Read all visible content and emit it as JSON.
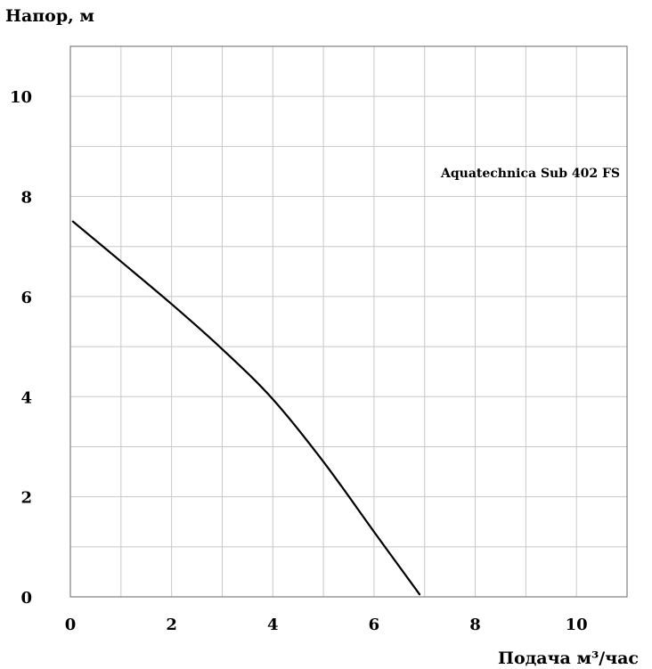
{
  "chart_data": {
    "type": "line",
    "ylabel": "Напор, м",
    "xlabel": "Подача м³/час",
    "annotation": "Aquatechnica Sub 402 FS",
    "xlim": [
      0,
      11
    ],
    "ylim": [
      0,
      11
    ],
    "x_ticks": [
      0,
      2,
      4,
      6,
      8,
      10
    ],
    "y_ticks": [
      0,
      2,
      4,
      6,
      8,
      10
    ],
    "x_tick_labels": [
      "0",
      "2",
      "4",
      "6",
      "8",
      "10"
    ],
    "y_tick_labels": [
      "0",
      "2",
      "4",
      "6",
      "8",
      "10"
    ],
    "grid": true,
    "grid_step": 1,
    "colors": {
      "line": "#000000",
      "grid": "#c8c8c8",
      "frame": "#808080"
    },
    "series": [
      {
        "x": [
          0.05,
          1,
          2,
          3,
          4,
          5,
          6,
          6.9
        ],
        "y": [
          7.5,
          6.7,
          5.85,
          4.95,
          3.95,
          2.7,
          1.3,
          0.05
        ]
      }
    ]
  }
}
